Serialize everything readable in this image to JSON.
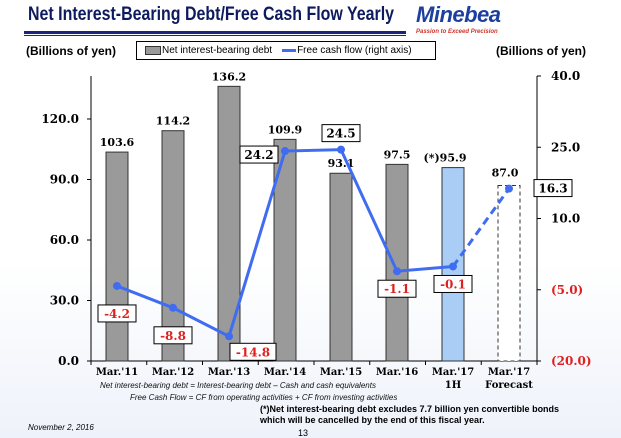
{
  "header": {
    "title": "Net Interest-Bearing Debt/Free Cash Flow  Yearly",
    "logo": "Minebea",
    "tagline": "Passion to Exceed Precision"
  },
  "chart_data": {
    "type": "bar+line",
    "left_unit": "(Billions of yen)",
    "right_unit": "(Billions of yen)",
    "categories": [
      "Mar.'11",
      "Mar.'12",
      "Mar.'13",
      "Mar.'14",
      "Mar.'15",
      "Mar.'16",
      "Mar.'17\n1H",
      "Mar.'17\nForecast"
    ],
    "category_lines": [
      [
        "Mar.'11"
      ],
      [
        "Mar.'12"
      ],
      [
        "Mar.'13"
      ],
      [
        "Mar.'14"
      ],
      [
        "Mar.'15"
      ],
      [
        "Mar.'16"
      ],
      [
        "Mar.'17",
        "1H"
      ],
      [
        "Mar.'17",
        "Forecast"
      ]
    ],
    "series": [
      {
        "name": "Net interest-bearing debt",
        "type": "bar",
        "axis": "left",
        "values": [
          103.6,
          114.2,
          136.2,
          109.9,
          93.1,
          97.5,
          95.9,
          87.0
        ],
        "labels": [
          "103.6",
          "114.2",
          "136.2",
          "109.9",
          "93.1",
          "97.5",
          "(*)95.9",
          "87.0"
        ],
        "colors": [
          "#9a9a9a",
          "#9a9a9a",
          "#9a9a9a",
          "#9a9a9a",
          "#9a9a9a",
          "#9a9a9a",
          "#a9cdf5",
          "#ffffff"
        ]
      },
      {
        "name": "Free cash flow (right axis)",
        "type": "line",
        "axis": "right",
        "values": [
          -4.2,
          -8.8,
          -14.8,
          24.2,
          24.5,
          -1.1,
          -0.1,
          16.3
        ],
        "labels": [
          "-4.2",
          "-8.8",
          "-14.8",
          "24.2",
          "24.5",
          "-1.1",
          "-0.1",
          "16.3"
        ],
        "color": "#3f6cf0",
        "last_segment": "dashed"
      }
    ],
    "left_axis": {
      "ylim": [
        0,
        135
      ],
      "ticks": [
        "0.0",
        "30.0",
        "60.0",
        "90.0",
        "120.0"
      ]
    },
    "right_axis": {
      "ylim": [
        -20,
        40
      ],
      "ticks": [
        "(20.0)",
        "(5.0)",
        "10.0",
        "25.0",
        "40.0"
      ],
      "tick_values": [
        -20,
        -5,
        10,
        25,
        40
      ],
      "negative_color": "#e02020"
    },
    "grid": false,
    "legend_placement": "top"
  },
  "notes": {
    "line1": "Net interest-bearing debt = Interest-bearing debt – Cash and cash equivalents",
    "line2": "Free Cash Flow = CF from operating activities + CF from investing activities",
    "foot1": "(*)Net interest-bearing debt excludes 7.7 billion yen convertible bonds",
    "foot2": "which will be cancelled by the end of this fiscal year."
  },
  "footer": {
    "date": "November 2, 2016",
    "page": "13"
  }
}
